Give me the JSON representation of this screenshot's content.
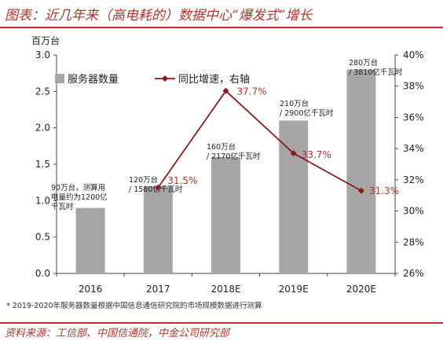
{
  "header": {
    "title": "图表：近几年来（高电耗的）数据中心“爆发式”增长"
  },
  "footnote": "* 2019-2020年服务器数量根据中国信息通信研究院的市场规模数据进行测算",
  "source": "资料来源：工信部、中国信通院，中金公司研究部",
  "colors": {
    "bar": "#a6a6a6",
    "line": "#8b1a1a",
    "accent": "#b4322a"
  },
  "chart_data": {
    "type": "bar",
    "categories": [
      "2016",
      "2017",
      "2018E",
      "2019E",
      "2020E"
    ],
    "y_unit_label": "百万台",
    "ylim": [
      0,
      3.0
    ],
    "yticks": [
      "0.0",
      "0.5",
      "1.0",
      "1.5",
      "2.0",
      "2.5",
      "3.0"
    ],
    "y2lim": [
      0.26,
      0.4
    ],
    "y2ticks": [
      "26%",
      "28%",
      "30%",
      "32%",
      "34%",
      "36%",
      "38%",
      "40%"
    ],
    "legend_position": "top",
    "series": [
      {
        "name": "服务器数量",
        "type": "bar",
        "values": [
          0.9,
          1.2,
          1.6,
          2.1,
          2.8
        ],
        "labels": [
          [
            "90万台，测算用",
            "电量约为1200亿",
            "千瓦时"
          ],
          [
            "120万台",
            "/ 1580亿千瓦时"
          ],
          [
            "160万台",
            "/ 2170亿千瓦时"
          ],
          [
            "210万台",
            "/ 2900亿千瓦时"
          ],
          [
            "280万台",
            "/ 3810亿千瓦时"
          ]
        ]
      },
      {
        "name": "同比增速，右轴",
        "type": "line",
        "axis": "right",
        "values": [
          null,
          0.315,
          0.377,
          0.337,
          0.313
        ],
        "labels": [
          "",
          "31.5%",
          "37.7%",
          "33.7%",
          "31.3%"
        ]
      }
    ]
  }
}
